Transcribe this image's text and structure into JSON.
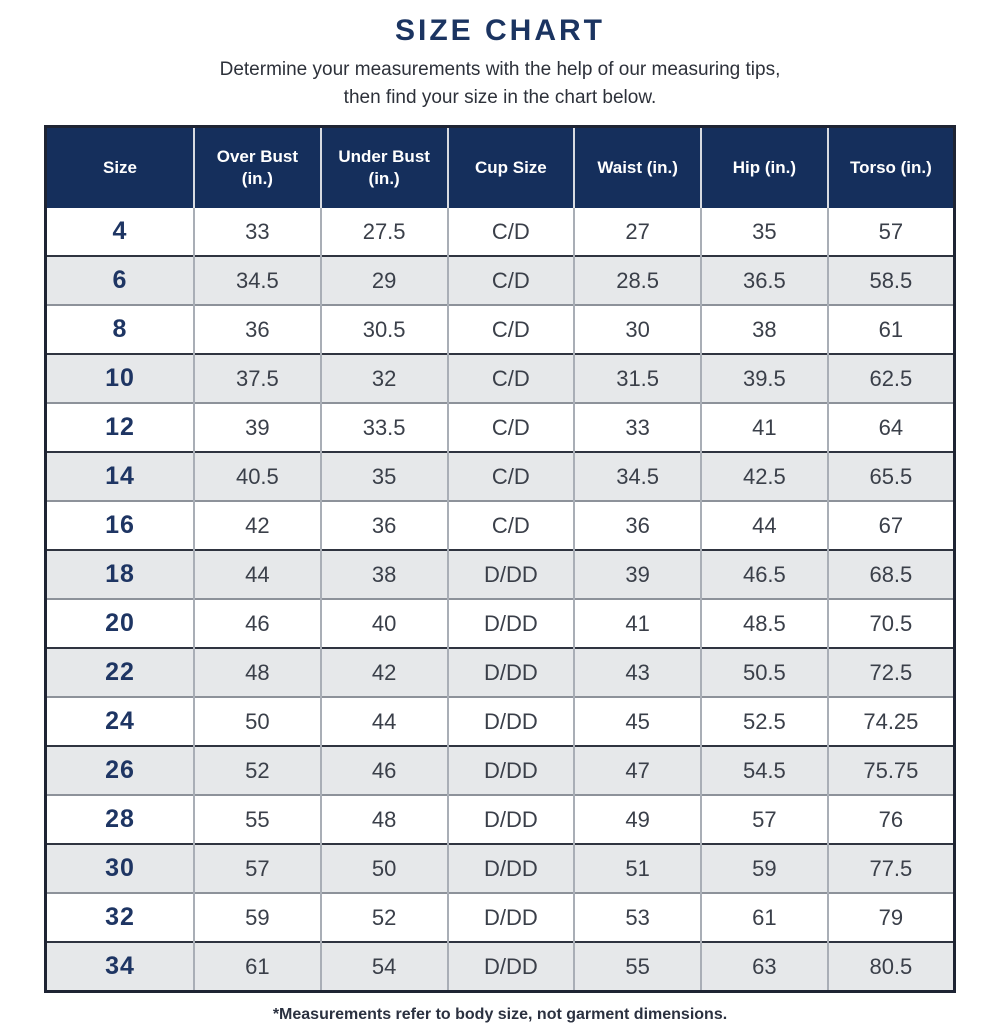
{
  "page": {
    "title": "SIZE CHART",
    "subtitle_line1": "Determine your measurements with the help of our measuring tips,",
    "subtitle_line2": "then find your size in the chart below.",
    "footnote": "*Measurements refer to body size, not garment dimensions."
  },
  "colors": {
    "header_bg": "#152f5c",
    "header_text": "#ffffff",
    "title_text": "#1b3461",
    "size_column_text": "#1e3563",
    "data_text": "#3a3f49",
    "row_bg": "#ffffff",
    "row_alt_bg": "#e6e8ea",
    "outer_border": "#1e2433",
    "vertical_divider": "#a9aeb6",
    "row_divider_dark": "#2f3440",
    "row_divider_light": "#8d929a"
  },
  "chart_data": {
    "type": "table",
    "title": "SIZE CHART",
    "columns": [
      "Size",
      "Over Bust (in.)",
      "Under Bust (in.)",
      "Cup Size",
      "Waist (in.)",
      "Hip (in.)",
      "Torso (in.)"
    ],
    "rows": [
      [
        "4",
        "33",
        "27.5",
        "C/D",
        "27",
        "35",
        "57"
      ],
      [
        "6",
        "34.5",
        "29",
        "C/D",
        "28.5",
        "36.5",
        "58.5"
      ],
      [
        "8",
        "36",
        "30.5",
        "C/D",
        "30",
        "38",
        "61"
      ],
      [
        "10",
        "37.5",
        "32",
        "C/D",
        "31.5",
        "39.5",
        "62.5"
      ],
      [
        "12",
        "39",
        "33.5",
        "C/D",
        "33",
        "41",
        "64"
      ],
      [
        "14",
        "40.5",
        "35",
        "C/D",
        "34.5",
        "42.5",
        "65.5"
      ],
      [
        "16",
        "42",
        "36",
        "C/D",
        "36",
        "44",
        "67"
      ],
      [
        "18",
        "44",
        "38",
        "D/DD",
        "39",
        "46.5",
        "68.5"
      ],
      [
        "20",
        "46",
        "40",
        "D/DD",
        "41",
        "48.5",
        "70.5"
      ],
      [
        "22",
        "48",
        "42",
        "D/DD",
        "43",
        "50.5",
        "72.5"
      ],
      [
        "24",
        "50",
        "44",
        "D/DD",
        "45",
        "52.5",
        "74.25"
      ],
      [
        "26",
        "52",
        "46",
        "D/DD",
        "47",
        "54.5",
        "75.75"
      ],
      [
        "28",
        "55",
        "48",
        "D/DD",
        "49",
        "57",
        "76"
      ],
      [
        "30",
        "57",
        "50",
        "D/DD",
        "51",
        "59",
        "77.5"
      ],
      [
        "32",
        "59",
        "52",
        "D/DD",
        "53",
        "61",
        "79"
      ],
      [
        "34",
        "61",
        "54",
        "D/DD",
        "55",
        "63",
        "80.5"
      ]
    ],
    "footnote": "*Measurements refer to body size, not garment dimensions.",
    "layout_hints": {
      "striped_rows": true,
      "first_column_emphasized": true
    }
  }
}
